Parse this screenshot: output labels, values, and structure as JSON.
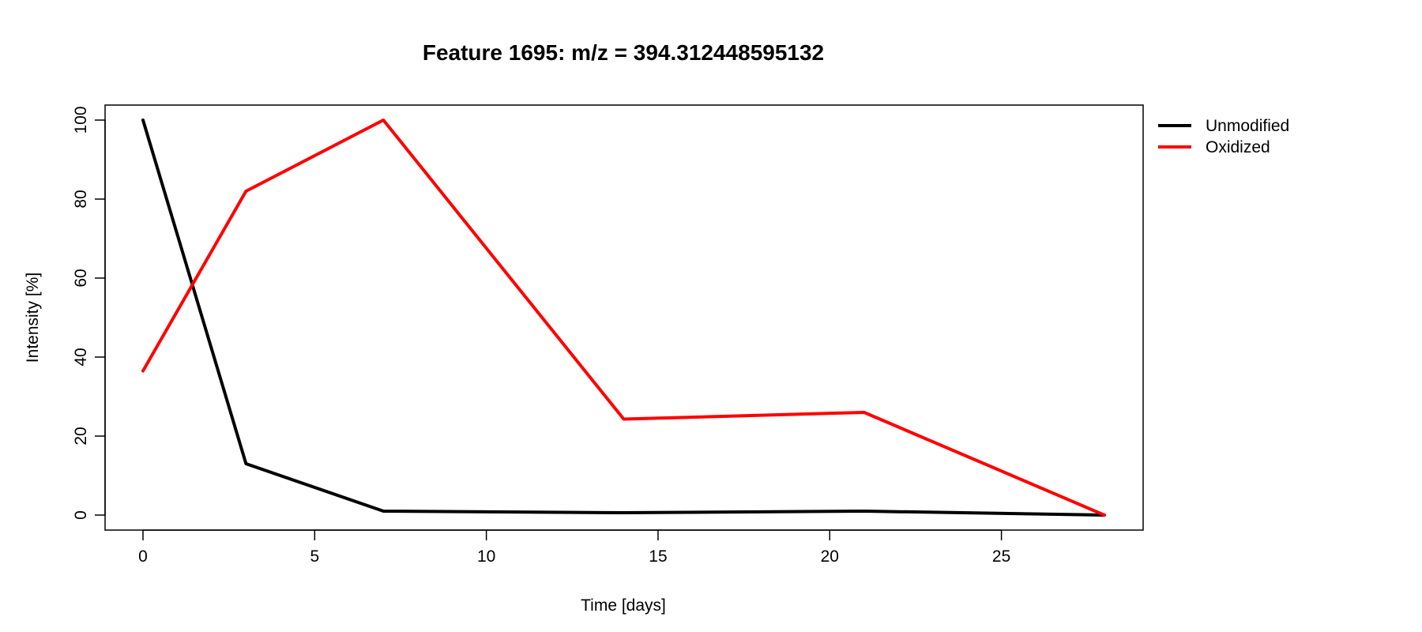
{
  "chart_data": {
    "type": "line",
    "title": "Feature 1695: m/z = 394.312448595132",
    "xlabel": "Time [days]",
    "ylabel": "Intensity [%]",
    "xlim": [
      0,
      28
    ],
    "ylim": [
      0,
      100
    ],
    "xticks": [
      0,
      5,
      10,
      15,
      20,
      25
    ],
    "yticks": [
      0,
      20,
      40,
      60,
      80,
      100
    ],
    "grid": false,
    "legend_position": "outside-top-right",
    "x": [
      0,
      3,
      7,
      14,
      21,
      28
    ],
    "series": [
      {
        "name": "Unmodified",
        "color": "#000000",
        "values": [
          100,
          13,
          1,
          0.6,
          1,
          0
        ]
      },
      {
        "name": "Oxidized",
        "color": "#ff0000",
        "values": [
          36.5,
          82,
          100,
          24.3,
          26,
          0
        ]
      }
    ]
  }
}
